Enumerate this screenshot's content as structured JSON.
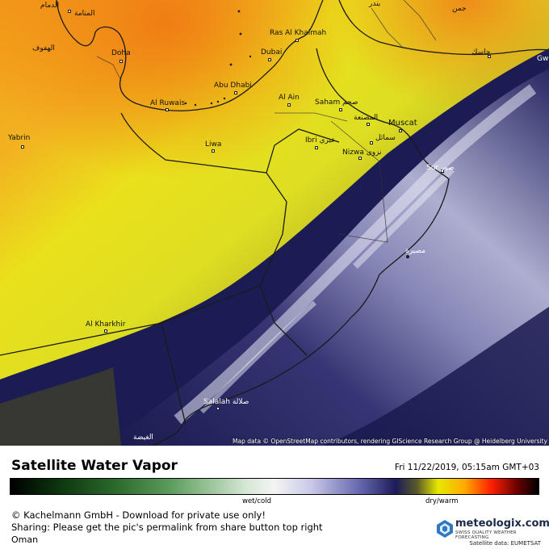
{
  "map": {
    "places": [
      {
        "id": "ad-dammam",
        "label": "الدمام"
      },
      {
        "id": "al-manama",
        "label": "المنامة"
      },
      {
        "id": "al-hufuf",
        "label": "الهفوف"
      },
      {
        "id": "doha",
        "label": "Doha"
      },
      {
        "id": "ras-al-khaimah",
        "label": "Ras Al Khaimah"
      },
      {
        "id": "dubai",
        "label": "Dubai"
      },
      {
        "id": "abu-dhabi",
        "label": "Abu Dhabi"
      },
      {
        "id": "al-ruwais",
        "label": "Al Ruwais"
      },
      {
        "id": "al-ain",
        "label": "Al Ain"
      },
      {
        "id": "saham",
        "label": "Saham صحم"
      },
      {
        "id": "al-musanaah",
        "label": "المصنعة"
      },
      {
        "id": "muscat",
        "label": "Muscat"
      },
      {
        "id": "samail",
        "label": "سمائل"
      },
      {
        "id": "ibri",
        "label": "Ibri عبري"
      },
      {
        "id": "nizwa",
        "label": "Nizwa نزوى"
      },
      {
        "id": "yabrin",
        "label": "Yabrin"
      },
      {
        "id": "liwa",
        "label": "Liwa"
      },
      {
        "id": "sur",
        "label": "Sur صور"
      },
      {
        "id": "masirah",
        "label": "مصيرة"
      },
      {
        "id": "al-khakhir",
        "label": "Al Kharkhir"
      },
      {
        "id": "salalah",
        "label": "Salalah صلالة"
      },
      {
        "id": "al-ghaydah",
        "label": "الغيضة"
      },
      {
        "id": "jask",
        "label": "جاسك"
      },
      {
        "id": "gwadar",
        "label": "Gw"
      },
      {
        "id": "top-iran",
        "label": "جمن"
      },
      {
        "id": "top-iran-2",
        "label": "بندر"
      }
    ],
    "attribution": "Map data © OpenStreetMap contributors, rendering GIScience Research Group @ Heidelberg University"
  },
  "footer": {
    "title": "Satellite Water Vapor",
    "datetime": "Fri 11/22/2019, 05:15am GMT+03",
    "scale_left_label": "wet/cold",
    "scale_right_label": "dry/warm",
    "copyright": "© Kachelmann GmbH - Download for private use only!",
    "sharing": "Sharing: Please get the pic's permalink from share button top right",
    "region": "Oman",
    "logo_name": "meteologix.com",
    "logo_tagline": "SWISS QUALITY WEATHER FORECASTING",
    "satellite_data": "Satellite data: EUMETSAT"
  },
  "colors": {
    "scale_wet": "#0e3a10",
    "scale_neutral": "#f4f4f4",
    "scale_cold_cloud": "#1c1c5a",
    "scale_dry": "#e8e800",
    "scale_very_dry": "#ff2000"
  }
}
